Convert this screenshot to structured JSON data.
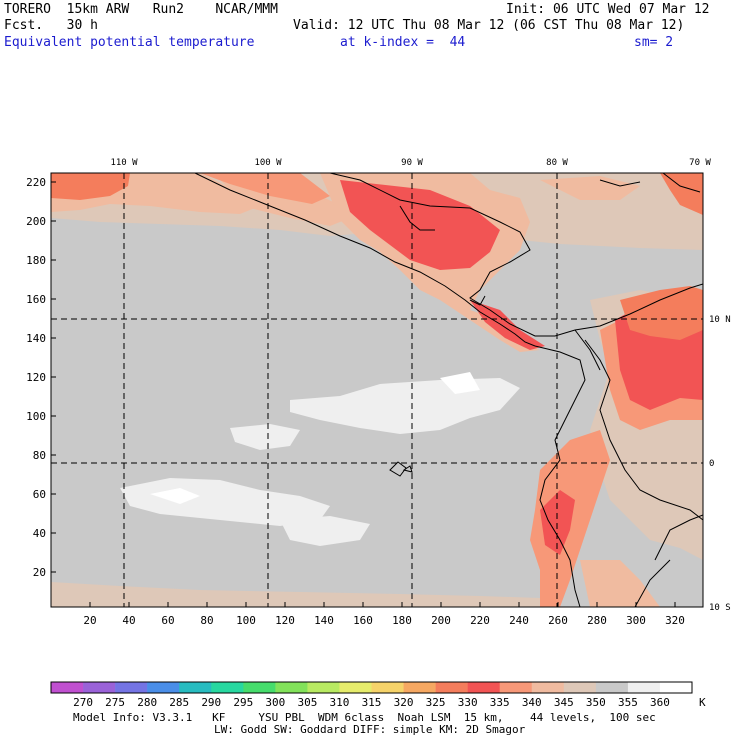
{
  "header": {
    "model": "TORERO  15km ARW   Run2    NCAR/MMM",
    "init": "Init: 06 UTC Wed 07 Mar 12",
    "fcst": "Fcst.   30 h",
    "valid": "Valid: 12 UTC Thu 08 Mar 12 (06 CST Thu 08 Mar 12)",
    "field": "Equivalent potential temperature",
    "level": "at k-index =  44",
    "smoothing": "sm= 2"
  },
  "map": {
    "top_lon_labels": [
      "110 W",
      "100 W",
      "90 W",
      "80 W",
      "70 W"
    ],
    "right_lat_labels": [
      "10 N",
      "0",
      "10 S"
    ],
    "x_ticks": [
      "20",
      "40",
      "60",
      "80",
      "100",
      "120",
      "140",
      "160",
      "180",
      "200",
      "220",
      "240",
      "260",
      "280",
      "300",
      "320"
    ],
    "y_ticks": [
      "220",
      "200",
      "180",
      "160",
      "140",
      "120",
      "100",
      "80",
      "60",
      "40",
      "20"
    ]
  },
  "colorbar": {
    "labels": [
      "270",
      "275",
      "280",
      "285",
      "290",
      "295",
      "300",
      "305",
      "310",
      "315",
      "320",
      "325",
      "330",
      "335",
      "340",
      "345",
      "350",
      "355",
      "360"
    ],
    "unit": "K",
    "colors": [
      "#c050d0",
      "#9a62d8",
      "#7474e4",
      "#4a8ee8",
      "#28bcc0",
      "#28d8a0",
      "#46dc6c",
      "#82e25a",
      "#b8ea62",
      "#e6ec6c",
      "#f6d36a",
      "#f6a862",
      "#f47d5c",
      "#f25454",
      "#f79878",
      "#f0bba0",
      "#dec8b8",
      "#c9c9c9",
      "#efefef",
      "#ffffff"
    ]
  },
  "footer": {
    "line1": "Model Info: V3.3.1   KF     YSU PBL  WDM 6class  Noah LSM  15 km,    44 levels,  100 sec",
    "line2": "LW: Godd SW: Goddard DIFF: simple KM: 2D Smagor"
  }
}
